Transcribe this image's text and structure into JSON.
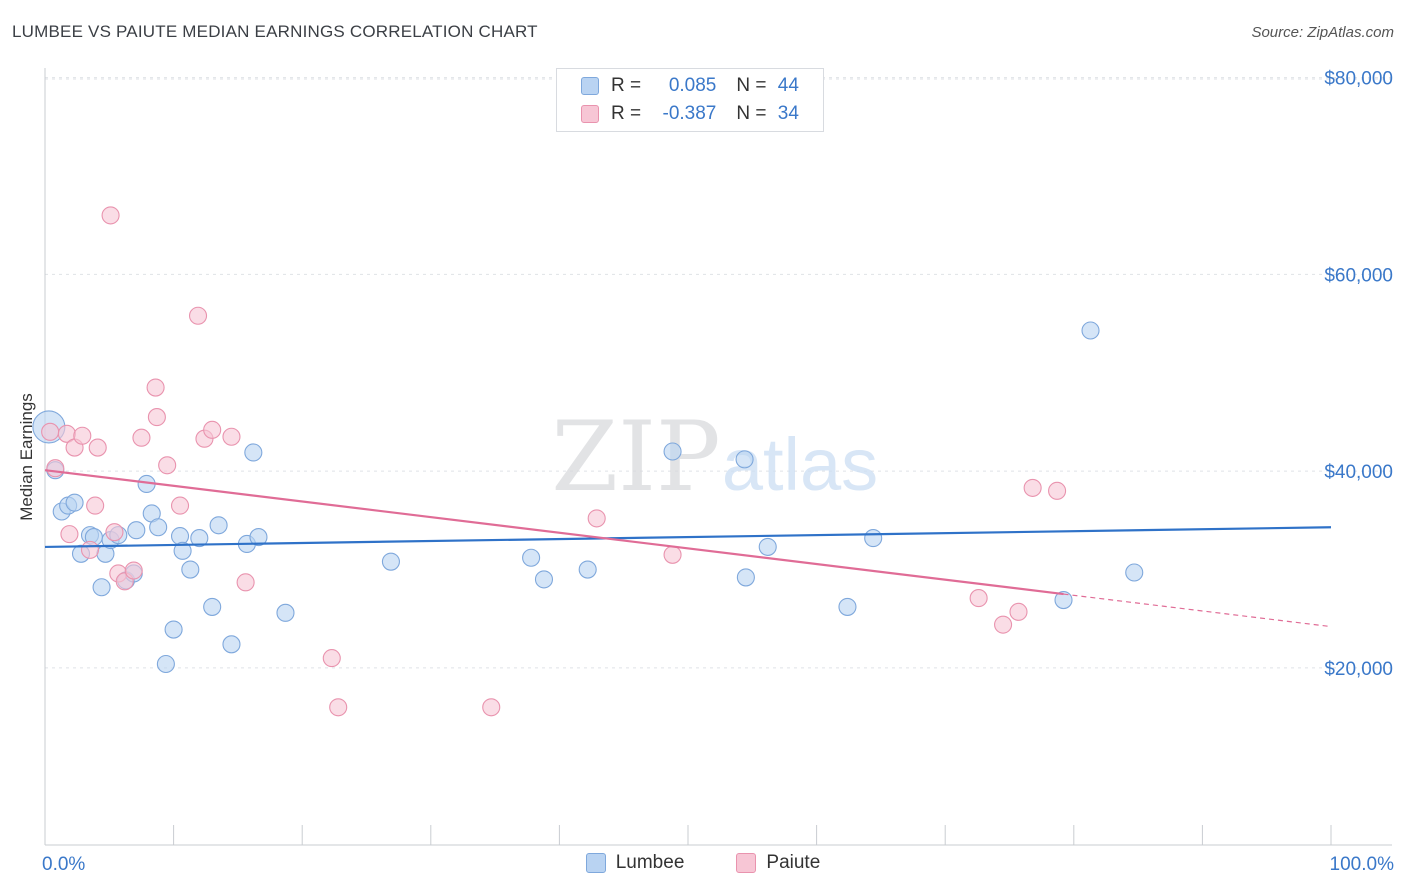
{
  "header": {
    "title": "LUMBEE VS PAIUTE MEDIAN EARNINGS CORRELATION CHART",
    "source": "Source: ZipAtlas.com"
  },
  "legend": {
    "rows": [
      {
        "r_label": "R = ",
        "r_value": "0.085",
        "n_label": "N = ",
        "n_value": "44"
      },
      {
        "r_label": "R = ",
        "r_value": "-0.387",
        "n_label": "N = ",
        "n_value": "34"
      }
    ]
  },
  "watermark": {
    "zip": "ZIP",
    "atlas": "atlas"
  },
  "colors": {
    "lumbee_fill": "#b9d3f2",
    "lumbee_stroke": "#7fa8dc",
    "lumbee_line": "#2f72c8",
    "paiute_fill": "#f7c6d5",
    "paiute_stroke": "#e993ae",
    "paiute_line": "#e06c96",
    "axis_label": "#3a78c9"
  },
  "chart_data": {
    "type": "scatter",
    "title": "LUMBEE VS PAIUTE MEDIAN EARNINGS CORRELATION CHART",
    "xlabel": "",
    "ylabel": "Median Earnings",
    "xlim": [
      0,
      100
    ],
    "ylim": [
      2000,
      82000
    ],
    "x_tick_labels": [
      "0.0%",
      "100.0%"
    ],
    "y_ticks": [
      20000,
      40000,
      60000,
      80000
    ],
    "y_tick_labels": [
      "$20,000",
      "$40,000",
      "$60,000",
      "$80,000"
    ],
    "grid": true,
    "legend_position": "top-center",
    "series": [
      {
        "name": "Lumbee",
        "r": 0.085,
        "n": 44,
        "trend": {
          "x0": 0,
          "y0": 32300,
          "x1": 100,
          "y1": 34300,
          "dashed_from": null
        },
        "points": [
          [
            0.3,
            44500
          ],
          [
            0.8,
            40100
          ],
          [
            1.3,
            35900
          ],
          [
            1.8,
            36500
          ],
          [
            2.3,
            36800
          ],
          [
            2.8,
            31600
          ],
          [
            3.5,
            33500
          ],
          [
            3.8,
            33300
          ],
          [
            4.4,
            28200
          ],
          [
            4.7,
            31600
          ],
          [
            5.1,
            33000
          ],
          [
            5.7,
            33500
          ],
          [
            6.3,
            28900
          ],
          [
            6.9,
            29600
          ],
          [
            7.1,
            34000
          ],
          [
            7.9,
            38700
          ],
          [
            8.3,
            35700
          ],
          [
            8.8,
            34300
          ],
          [
            9.4,
            20400
          ],
          [
            10.0,
            23900
          ],
          [
            10.5,
            33400
          ],
          [
            10.7,
            31900
          ],
          [
            11.3,
            30000
          ],
          [
            12.0,
            33200
          ],
          [
            13.0,
            26200
          ],
          [
            13.5,
            34500
          ],
          [
            14.5,
            22400
          ],
          [
            15.7,
            32600
          ],
          [
            16.2,
            41900
          ],
          [
            16.6,
            33300
          ],
          [
            18.7,
            25600
          ],
          [
            26.9,
            30800
          ],
          [
            37.8,
            31200
          ],
          [
            38.8,
            29000
          ],
          [
            42.2,
            30000
          ],
          [
            48.8,
            42000
          ],
          [
            54.4,
            41200
          ],
          [
            54.5,
            29200
          ],
          [
            56.2,
            32300
          ],
          [
            62.4,
            26200
          ],
          [
            64.4,
            33200
          ],
          [
            79.2,
            26900
          ],
          [
            81.3,
            54300
          ],
          [
            84.7,
            29700
          ]
        ]
      },
      {
        "name": "Paiute",
        "r": -0.387,
        "n": 34,
        "trend": {
          "x0": 0,
          "y0": 40100,
          "x1": 100,
          "y1": 24200,
          "dashed_from": 79.2
        },
        "points": [
          [
            0.4,
            44000
          ],
          [
            0.8,
            40300
          ],
          [
            1.7,
            43800
          ],
          [
            1.9,
            33600
          ],
          [
            2.3,
            42400
          ],
          [
            2.9,
            43600
          ],
          [
            3.5,
            32000
          ],
          [
            3.9,
            36500
          ],
          [
            4.1,
            42400
          ],
          [
            5.1,
            66000
          ],
          [
            5.4,
            33800
          ],
          [
            5.7,
            29600
          ],
          [
            6.2,
            28800
          ],
          [
            6.9,
            29900
          ],
          [
            7.5,
            43400
          ],
          [
            8.6,
            48500
          ],
          [
            8.7,
            45500
          ],
          [
            9.5,
            40600
          ],
          [
            10.5,
            36500
          ],
          [
            11.9,
            55800
          ],
          [
            12.4,
            43300
          ],
          [
            13.0,
            44200
          ],
          [
            14.5,
            43500
          ],
          [
            15.6,
            28700
          ],
          [
            22.3,
            21000
          ],
          [
            22.8,
            16000
          ],
          [
            34.7,
            16000
          ],
          [
            42.9,
            35200
          ],
          [
            48.8,
            31500
          ],
          [
            72.6,
            27100
          ],
          [
            74.5,
            24400
          ],
          [
            75.7,
            25700
          ],
          [
            76.8,
            38300
          ],
          [
            78.7,
            38000
          ]
        ]
      }
    ]
  }
}
